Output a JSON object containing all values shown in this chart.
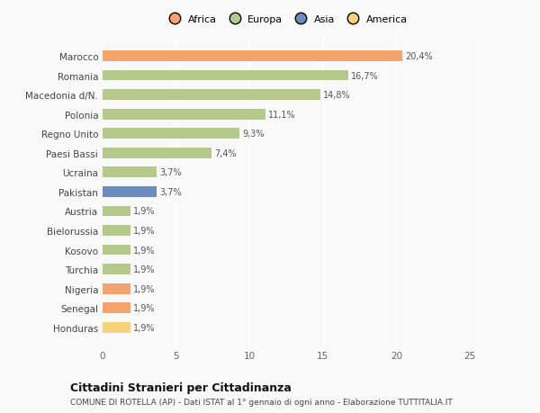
{
  "countries": [
    "Honduras",
    "Senegal",
    "Nigeria",
    "Turchia",
    "Kosovo",
    "Bielorussia",
    "Austria",
    "Pakistan",
    "Ucraina",
    "Paesi Bassi",
    "Regno Unito",
    "Polonia",
    "Macedonia d/N.",
    "Romania",
    "Marocco"
  ],
  "values": [
    1.9,
    1.9,
    1.9,
    1.9,
    1.9,
    1.9,
    1.9,
    3.7,
    3.7,
    7.4,
    9.3,
    11.1,
    14.8,
    16.7,
    20.4
  ],
  "labels": [
    "1,9%",
    "1,9%",
    "1,9%",
    "1,9%",
    "1,9%",
    "1,9%",
    "1,9%",
    "3,7%",
    "3,7%",
    "7,4%",
    "9,3%",
    "11,1%",
    "14,8%",
    "16,7%",
    "20,4%"
  ],
  "continents": [
    "America",
    "Africa",
    "Africa",
    "Europa",
    "Europa",
    "Europa",
    "Europa",
    "Asia",
    "Europa",
    "Europa",
    "Europa",
    "Europa",
    "Europa",
    "Europa",
    "Africa"
  ],
  "colors": {
    "Africa": "#F4A46A",
    "Europa": "#B5C98A",
    "Asia": "#6B8CBE",
    "America": "#F7D27A"
  },
  "legend_order": [
    "Africa",
    "Europa",
    "Asia",
    "America"
  ],
  "legend_colors": [
    "#F4A46A",
    "#B5C98A",
    "#6B8CBE",
    "#F7D27A"
  ],
  "xlim": [
    0,
    25
  ],
  "xticks": [
    0,
    5,
    10,
    15,
    20,
    25
  ],
  "title": "Cittadini Stranieri per Cittadinanza",
  "subtitle": "COMUNE DI ROTELLA (AP) - Dati ISTAT al 1° gennaio di ogni anno - Elaborazione TUTTITALIA.IT",
  "background_color": "#f9f9f9",
  "bar_height": 0.55
}
